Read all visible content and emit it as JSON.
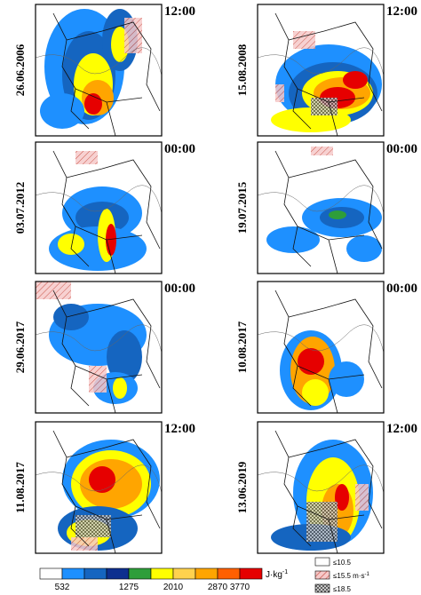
{
  "panels": [
    {
      "date": "26.06.2006",
      "time": "12:00"
    },
    {
      "date": "15.08.2008",
      "time": "12:00"
    },
    {
      "date": "03.07.2012",
      "time": "00:00"
    },
    {
      "date": "19.07.2015",
      "time": "00:00"
    },
    {
      "date": "29.06.2017",
      "time": "00:00"
    },
    {
      "date": "10.08.2017",
      "time": "00:00"
    },
    {
      "date": "11.08.2017",
      "time": "12:00"
    },
    {
      "date": "13.06.2019",
      "time": "12:00"
    }
  ],
  "colorbar": {
    "labels": [
      "532",
      "1275",
      "2010",
      "2870",
      "3770"
    ],
    "unit": "J·kg",
    "unit_exp": "-1",
    "colors": [
      "#ffffff",
      "#1e90ff",
      "#1565c0",
      "#0d2f8f",
      "#2e9e3a",
      "#ffff00",
      "#ffd24d",
      "#ffa500",
      "#ff6000",
      "#e60000"
    ]
  },
  "legend": [
    {
      "label": "≤10.5"
    },
    {
      "label": "≤15.5 m·s",
      "exp": "-1"
    },
    {
      "label": "≤18.5"
    }
  ]
}
